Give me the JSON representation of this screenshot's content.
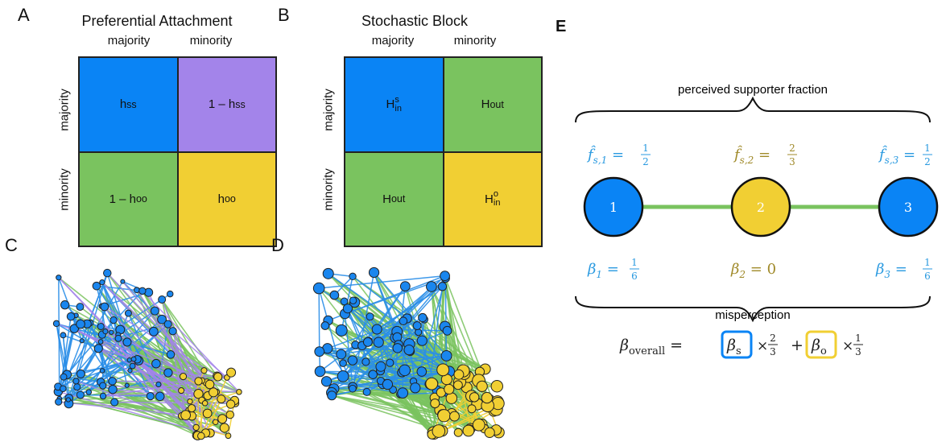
{
  "panelA": {
    "label": "A",
    "title": "Preferential Attachment",
    "col_majority": "majority",
    "col_minority": "minority",
    "row_majority": "majority",
    "row_minority": "minority",
    "cells": {
      "tl": "h",
      "tl_sub": "ss",
      "tr": "1 – h",
      "tr_sub": "ss",
      "bl": "1 – h",
      "bl_sub": "oo",
      "br": "h",
      "br_sub": "oo"
    },
    "colors": {
      "tl": "#0a84f5",
      "tr": "#a384ea",
      "bl": "#7ac35f",
      "br": "#f1cf33"
    }
  },
  "panelB": {
    "label": "B",
    "title": "Stochastic Block",
    "col_majority": "majority",
    "col_minority": "minority",
    "row_majority": "majority",
    "row_minority": "minority",
    "cells": {
      "tl": "H",
      "tl_sup": "s",
      "tl_sub": "in",
      "tr": "H",
      "tr_sub": "out",
      "bl": "H",
      "bl_sub": "out",
      "br": "H",
      "br_sup": "o",
      "br_sub": "in"
    },
    "colors": {
      "tl": "#0a84f5",
      "tr": "#7ac35f",
      "bl": "#7ac35f",
      "br": "#f1cf33"
    }
  },
  "panelC": {
    "label": "C"
  },
  "panelD": {
    "label": "D"
  },
  "panelE": {
    "label": "E",
    "top_caption": "perceived supporter fraction",
    "bottom_caption": "misperception",
    "nodes": [
      {
        "id": "1",
        "color": "#0a84f5",
        "f_label": "f̂",
        "f_sub": "s,1",
        "f_num": "1",
        "f_den": "2",
        "beta_sub": "1",
        "beta_num": "1",
        "beta_den": "6",
        "text_color": "#2a9ae0"
      },
      {
        "id": "2",
        "color": "#f1cf33",
        "f_label": "f̂",
        "f_sub": "s,2",
        "f_num": "2",
        "f_den": "3",
        "beta_sub": "2",
        "beta_val": "0",
        "text_color": "#a08a2a"
      },
      {
        "id": "3",
        "color": "#0a84f5",
        "f_label": "f̂",
        "f_sub": "s,3",
        "f_num": "1",
        "f_den": "2",
        "beta_sub": "3",
        "beta_num": "1",
        "beta_den": "6",
        "text_color": "#2a9ae0"
      }
    ],
    "edge_color": "#7ac35f",
    "formula": {
      "lhs": "β",
      "lhs_sub": "overall",
      "term1": "β",
      "term1_sub": "s",
      "term1_num": "2",
      "term1_den": "3",
      "term2": "β",
      "term2_sub": "o",
      "term2_num": "1",
      "term2_den": "3",
      "box1_color": "#0a84f5",
      "box2_color": "#f1cf33"
    }
  }
}
